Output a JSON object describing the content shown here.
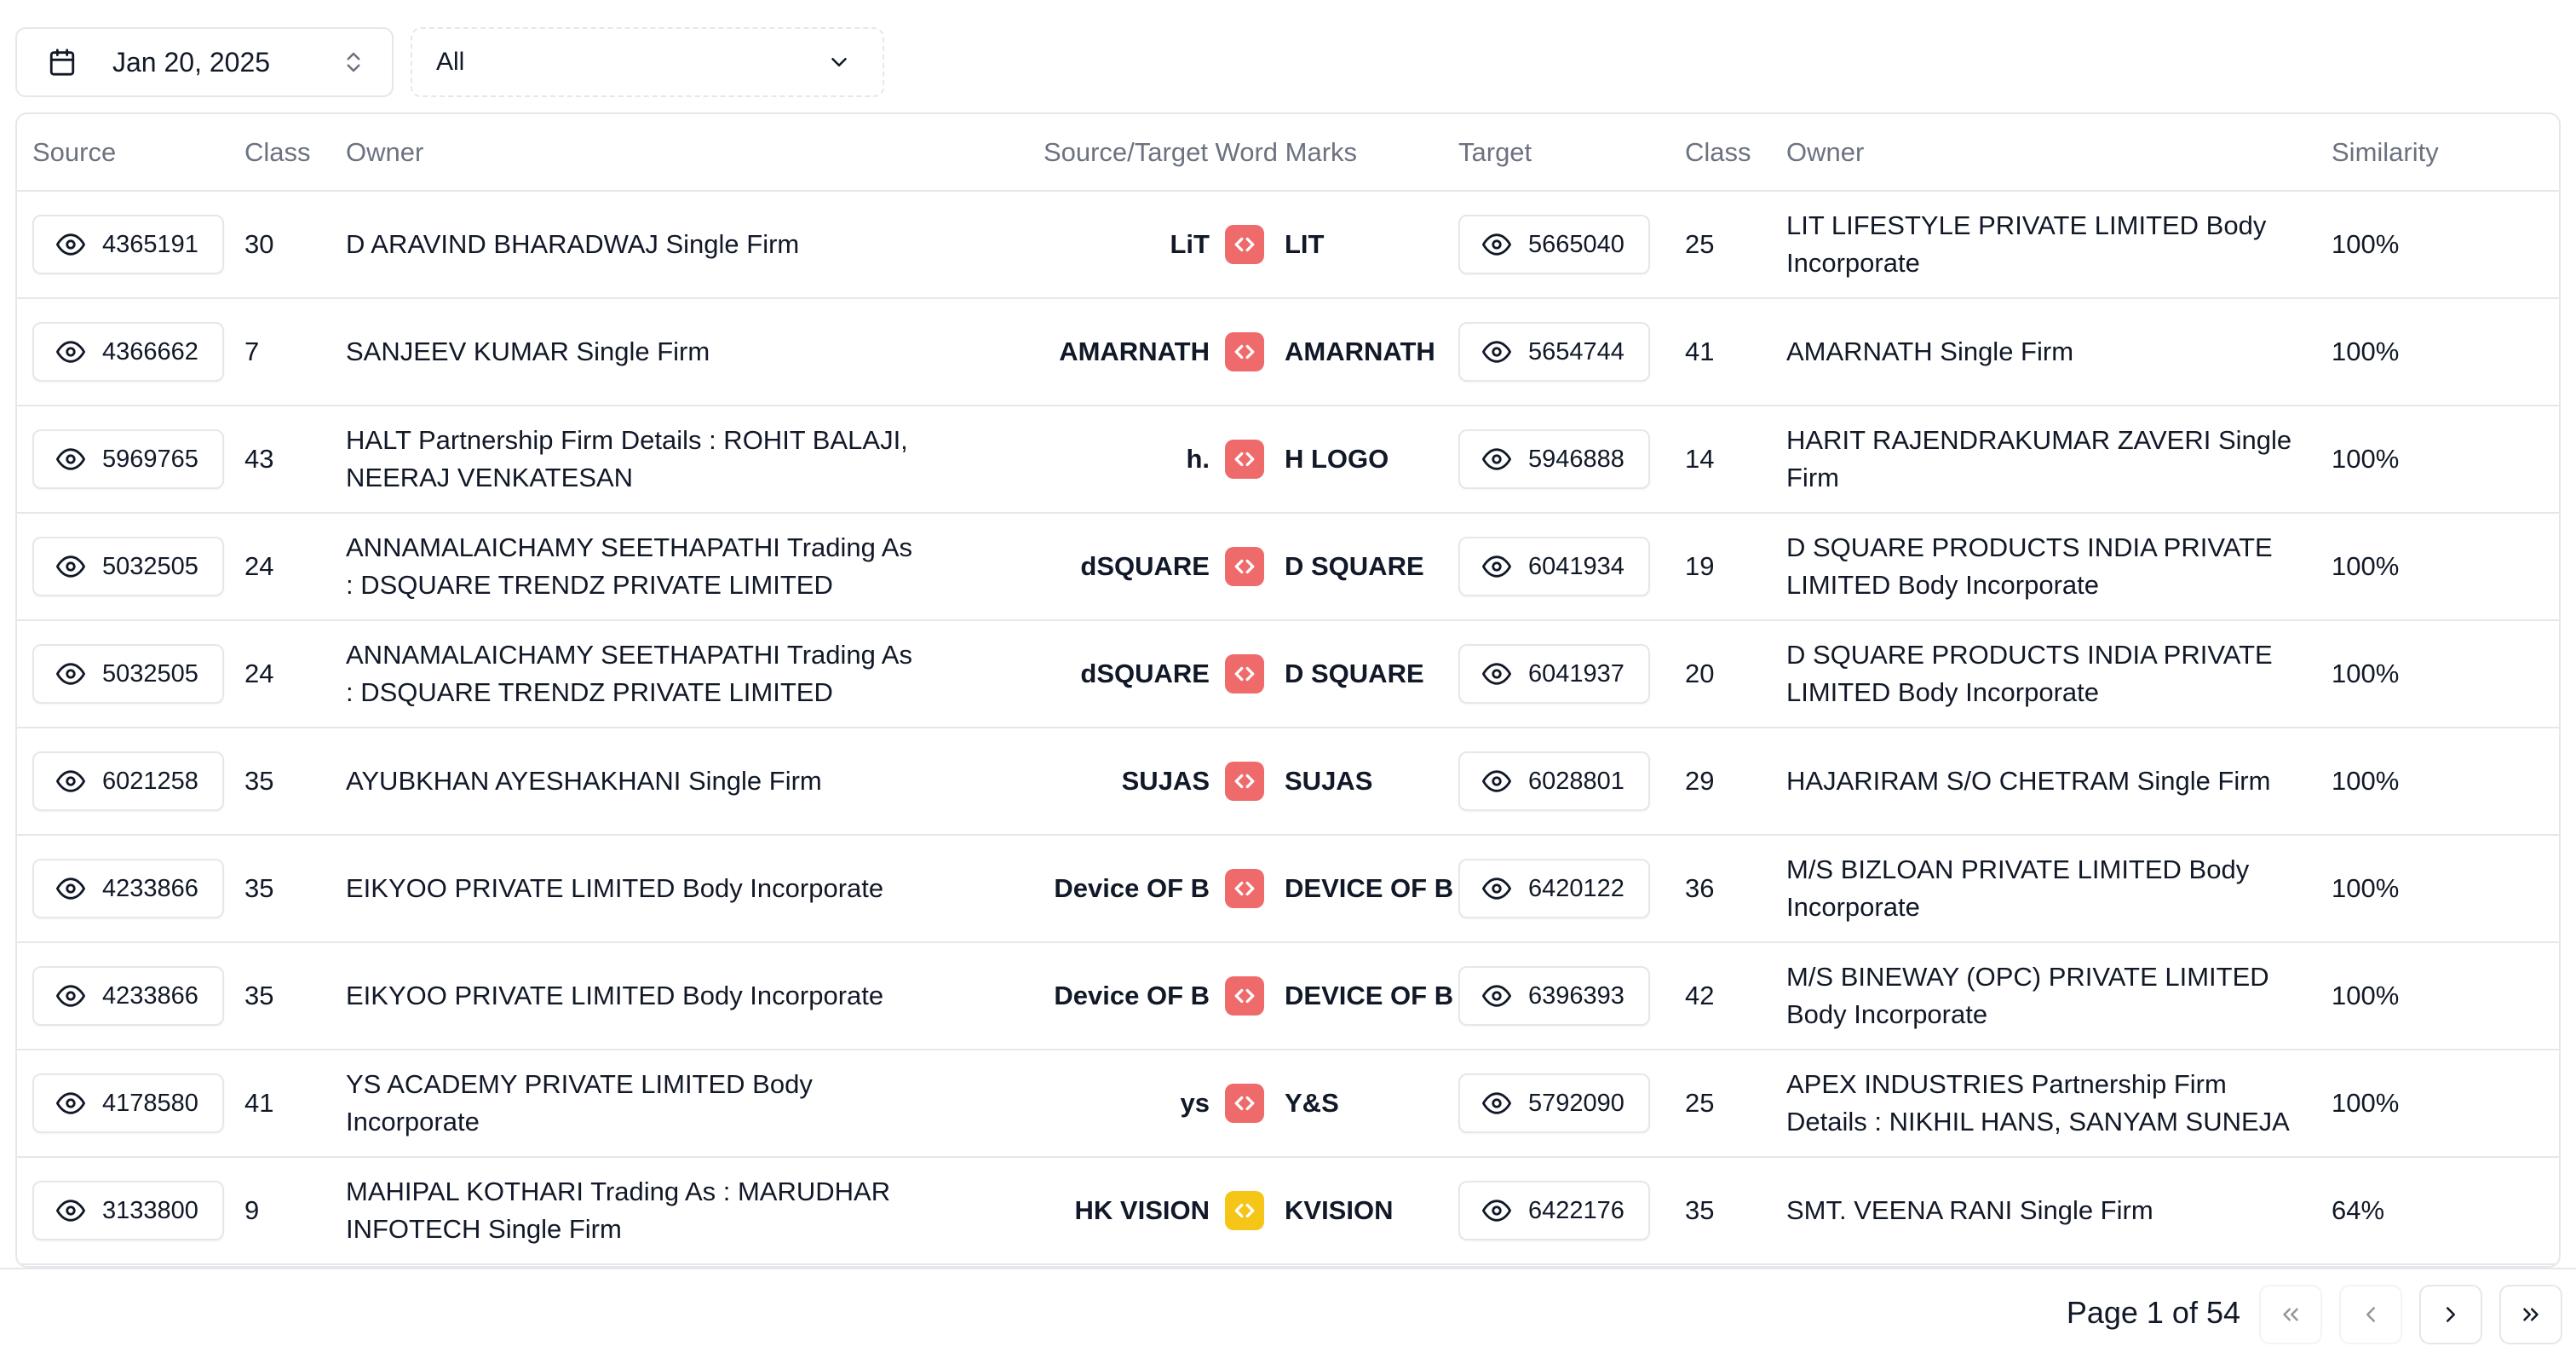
{
  "toolbar": {
    "date_label": "Jan 20, 2025",
    "filter_label": "All"
  },
  "columns": {
    "source": "Source",
    "source_class": "Class",
    "source_owner": "Owner",
    "word_marks": "Source/Target Word Marks",
    "target": "Target",
    "target_class": "Class",
    "target_owner": "Owner",
    "similarity": "Similarity"
  },
  "rows": [
    {
      "source_id": "4365191",
      "source_class": "30",
      "source_owner": "D ARAVIND BHARADWAJ Single Firm",
      "source_mark": "LiT",
      "target_mark": "LIT",
      "target_id": "5665040",
      "target_class": "25",
      "target_owner": "LIT LIFESTYLE PRIVATE LIMITED Body Incorporate",
      "similarity": "100%",
      "badge": "red"
    },
    {
      "source_id": "4366662",
      "source_class": "7",
      "source_owner": "SANJEEV KUMAR Single Firm",
      "source_mark": "AMARNATH",
      "target_mark": "AMARNATH",
      "target_id": "5654744",
      "target_class": "41",
      "target_owner": "AMARNATH Single Firm",
      "similarity": "100%",
      "badge": "red"
    },
    {
      "source_id": "5969765",
      "source_class": "43",
      "source_owner": "HALT Partnership Firm Details : ROHIT BALAJI, NEERAJ VENKATESAN",
      "source_mark": "h.",
      "target_mark": "H LOGO",
      "target_id": "5946888",
      "target_class": "14",
      "target_owner": "HARIT RAJENDRAKUMAR ZAVERI Single Firm",
      "similarity": "100%",
      "badge": "red"
    },
    {
      "source_id": "5032505",
      "source_class": "24",
      "source_owner": "ANNAMALAICHAMY SEETHAPATHI Trading As : DSQUARE TRENDZ PRIVATE LIMITED",
      "source_mark": "dSQUARE",
      "target_mark": "D SQUARE",
      "target_id": "6041934",
      "target_class": "19",
      "target_owner": "D SQUARE PRODUCTS INDIA PRIVATE LIMITED Body Incorporate",
      "similarity": "100%",
      "badge": "red"
    },
    {
      "source_id": "5032505",
      "source_class": "24",
      "source_owner": "ANNAMALAICHAMY SEETHAPATHI Trading As : DSQUARE TRENDZ PRIVATE LIMITED",
      "source_mark": "dSQUARE",
      "target_mark": "D SQUARE",
      "target_id": "6041937",
      "target_class": "20",
      "target_owner": "D SQUARE PRODUCTS INDIA PRIVATE LIMITED Body Incorporate",
      "similarity": "100%",
      "badge": "red"
    },
    {
      "source_id": "6021258",
      "source_class": "35",
      "source_owner": "AYUBKHAN AYESHAKHANI Single Firm",
      "source_mark": "SUJAS",
      "target_mark": "SUJAS",
      "target_id": "6028801",
      "target_class": "29",
      "target_owner": "HAJARIRAM S/O CHETRAM Single Firm",
      "similarity": "100%",
      "badge": "red"
    },
    {
      "source_id": "4233866",
      "source_class": "35",
      "source_owner": "EIKYOO PRIVATE LIMITED Body Incorporate",
      "source_mark": "Device OF B",
      "target_mark": "DEVICE OF B",
      "target_id": "6420122",
      "target_class": "36",
      "target_owner": "M/S BIZLOAN PRIVATE LIMITED Body Incorporate",
      "similarity": "100%",
      "badge": "red"
    },
    {
      "source_id": "4233866",
      "source_class": "35",
      "source_owner": "EIKYOO PRIVATE LIMITED Body Incorporate",
      "source_mark": "Device OF B",
      "target_mark": "DEVICE OF B",
      "target_id": "6396393",
      "target_class": "42",
      "target_owner": "M/S BINEWAY (OPC) PRIVATE LIMITED Body Incorporate",
      "similarity": "100%",
      "badge": "red"
    },
    {
      "source_id": "4178580",
      "source_class": "41",
      "source_owner": "YS ACADEMY PRIVATE LIMITED Body Incorporate",
      "source_mark": "ys",
      "target_mark": "Y&S",
      "target_id": "5792090",
      "target_class": "25",
      "target_owner": "APEX INDUSTRIES Partnership Firm Details : NIKHIL HANS, SANYAM SUNEJA",
      "similarity": "100%",
      "badge": "red"
    },
    {
      "source_id": "3133800",
      "source_class": "9",
      "source_owner": "MAHIPAL KOTHARI Trading As : MARUDHAR INFOTECH Single Firm",
      "source_mark": "HK VISION",
      "target_mark": "KVISION",
      "target_id": "6422176",
      "target_class": "35",
      "target_owner": "SMT. VEENA RANI Single Firm",
      "similarity": "64%",
      "badge": "yellow"
    }
  ],
  "pagination": {
    "page_label": "Page 1 of 54"
  },
  "icons": {
    "date": "calendar-icon",
    "date_toggle": "chevrons-up-down-icon",
    "filter": "chevron-down-icon",
    "view": "eye-icon",
    "compare": "code-brackets-icon",
    "first": "chevrons-left-icon",
    "prev": "chevron-left-icon",
    "next": "chevron-right-icon",
    "last": "chevrons-right-icon"
  },
  "colors": {
    "badge_red": "#ef6b6b",
    "badge_yellow": "#f5c518",
    "border": "#e5e7eb",
    "header_text": "#6b7280"
  }
}
